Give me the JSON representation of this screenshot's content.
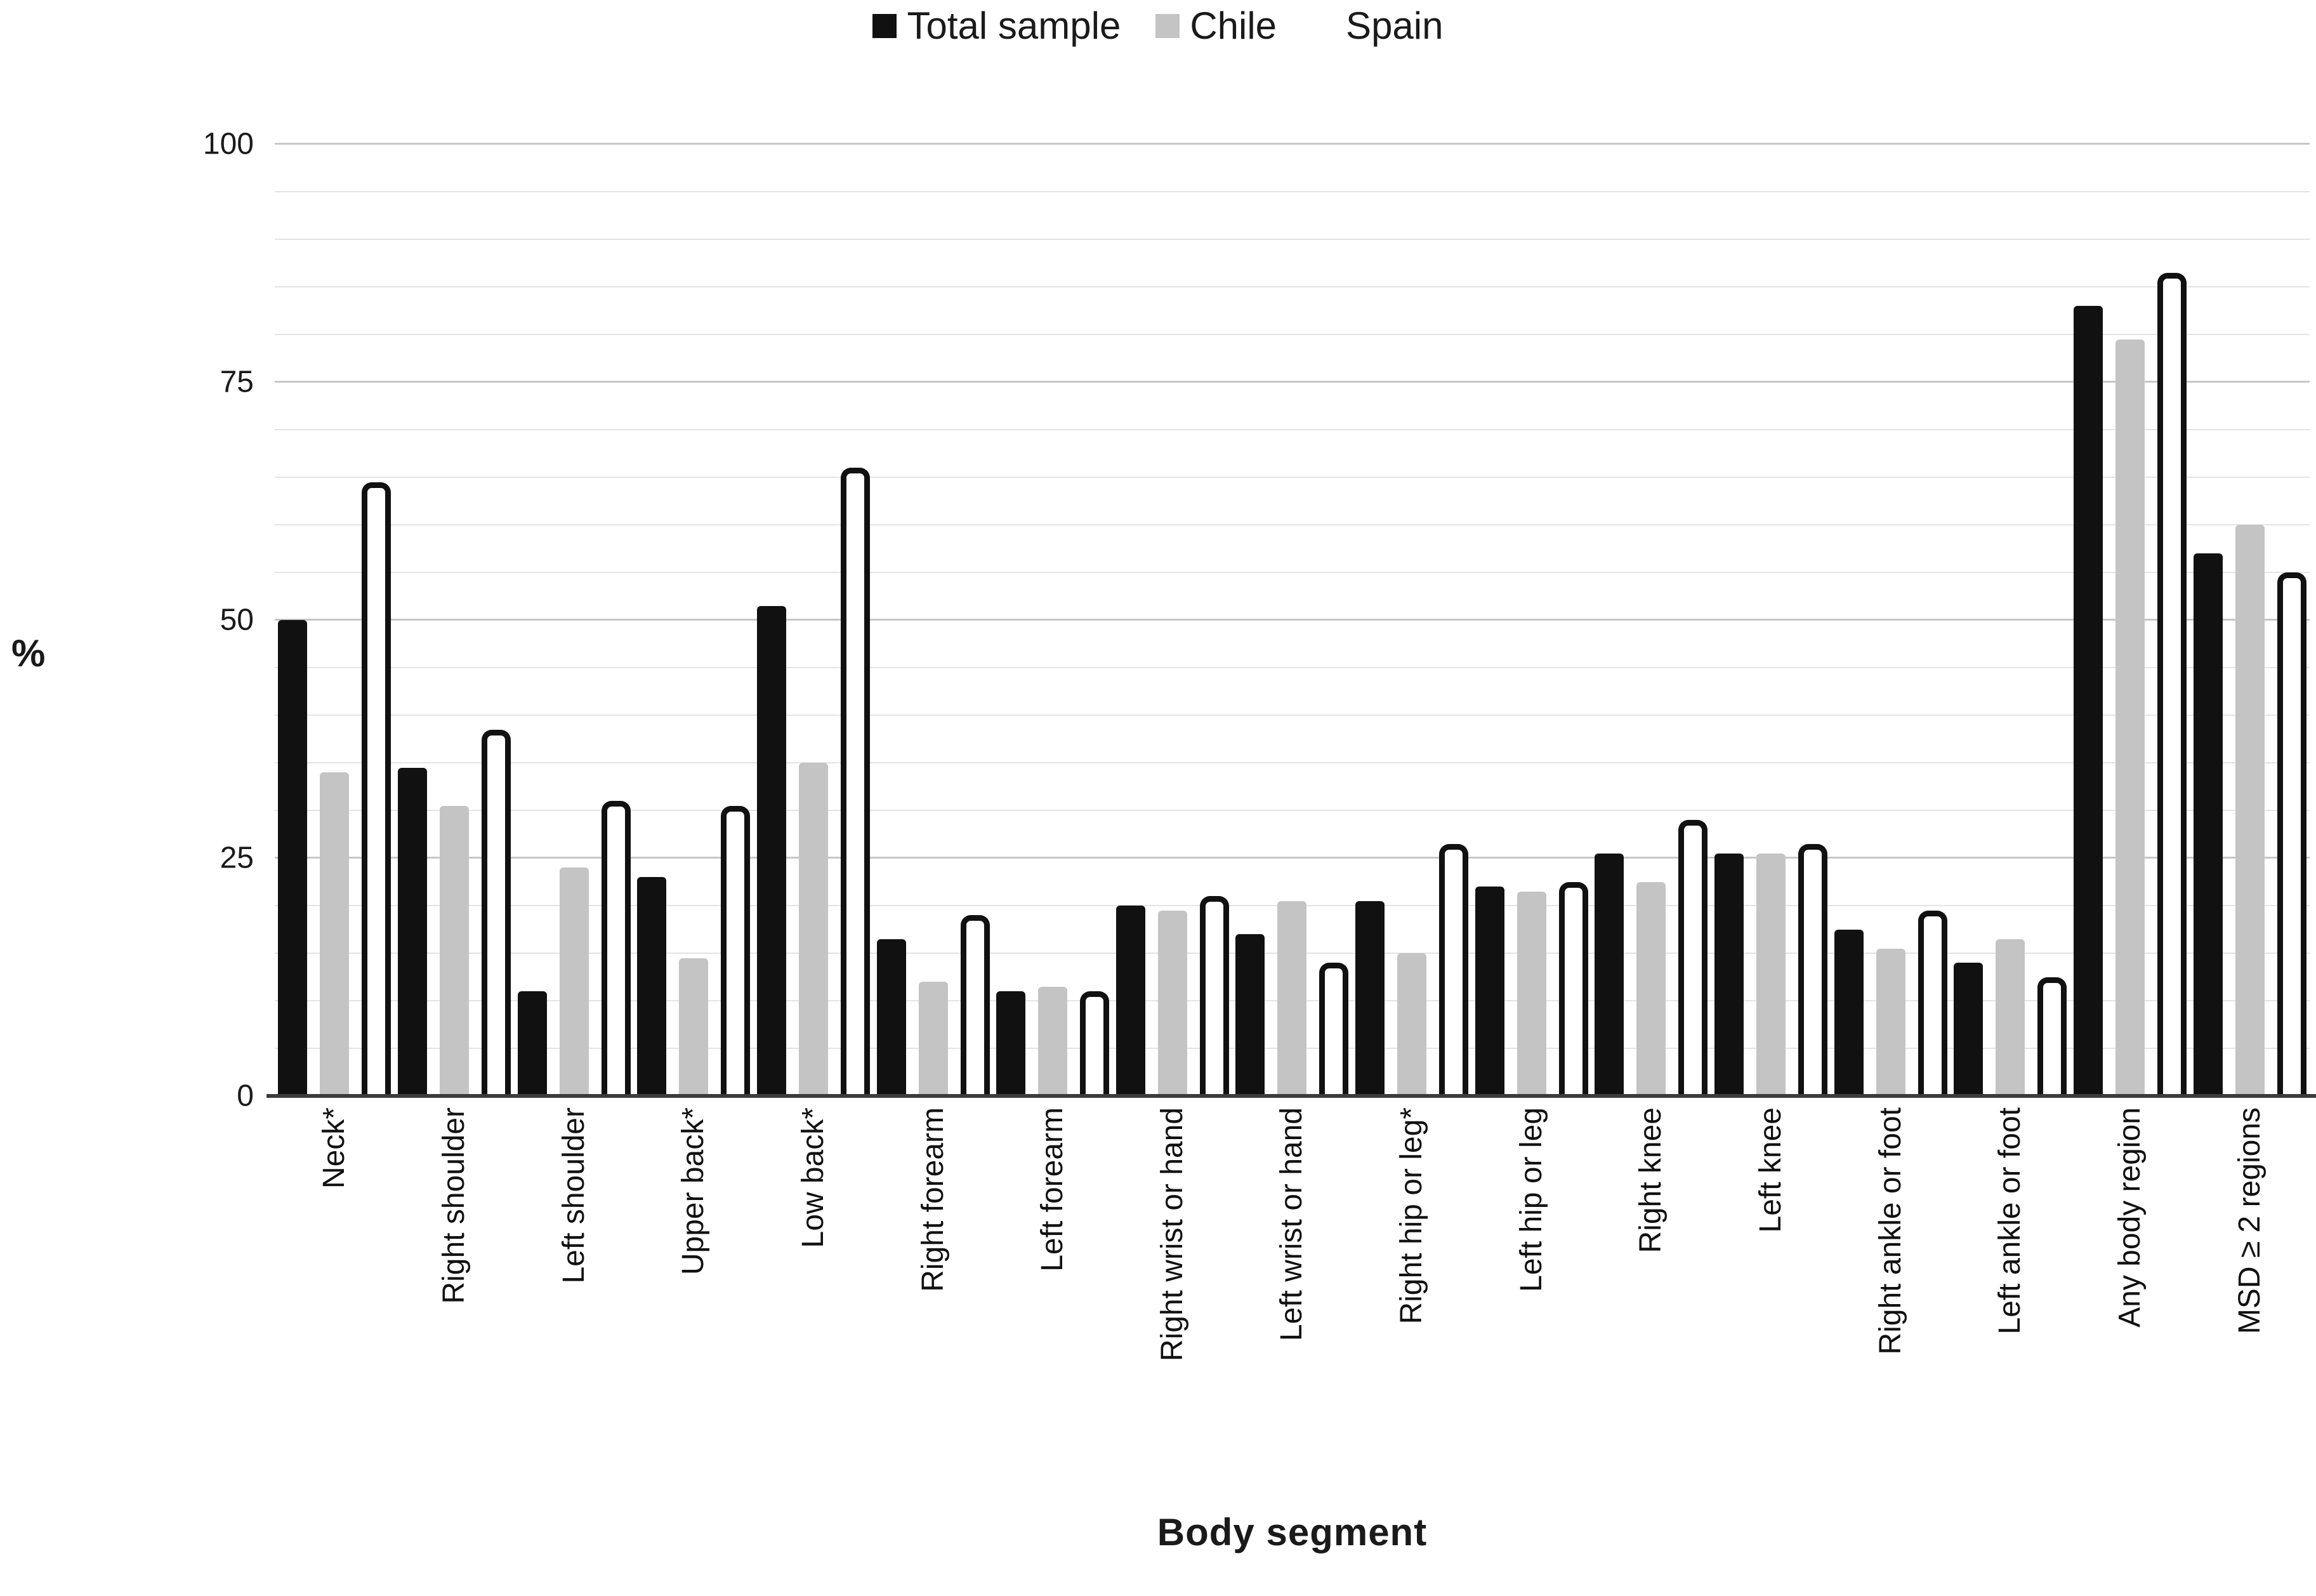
{
  "figure": {
    "background": "#ffffff",
    "text_color": "#1a1a1a"
  },
  "chart_data": {
    "type": "bar",
    "title": "",
    "xlabel": "Body segment",
    "ylabel": "%",
    "ylim": [
      0,
      100
    ],
    "yticks": [
      0,
      25,
      50,
      75,
      100
    ],
    "minor_grid_step": 5,
    "grid": "on",
    "legend_position": "top",
    "categories": [
      "Neck*",
      "Right shoulder",
      "Left shoulder",
      "Upper back*",
      "Low back*",
      "Right forearm",
      "Left forearm",
      "Right wrist or hand",
      "Left wrist or hand",
      "Right hip or leg*",
      "Left hip or leg",
      "Right knee",
      "Left knee",
      "Right ankle or foot",
      "Left ankle or foot",
      "Any body region",
      "MSD ≥ 2 regions"
    ],
    "series": [
      {
        "name": "Total sample",
        "color": "#111111",
        "border_color": null,
        "values": [
          50,
          34.5,
          11,
          23,
          51.5,
          16.5,
          11,
          20,
          17,
          20.5,
          22,
          25.5,
          25.5,
          17.5,
          14,
          83,
          57
        ]
      },
      {
        "name": "Chile",
        "color": "#c4c4c4",
        "border_color": null,
        "values": [
          34,
          30.5,
          24,
          14.5,
          35,
          12,
          11.5,
          19.5,
          20.5,
          15,
          21.5,
          22.5,
          25.5,
          15.5,
          16.5,
          79.5,
          60
        ]
      },
      {
        "name": "Spain",
        "color": "#ffffff",
        "border_color": "#111111",
        "values": [
          64.5,
          38.5,
          31,
          30.5,
          66,
          19,
          11,
          21,
          14,
          26.5,
          22.5,
          29,
          26.5,
          19.5,
          12.5,
          86.5,
          55
        ]
      }
    ]
  }
}
